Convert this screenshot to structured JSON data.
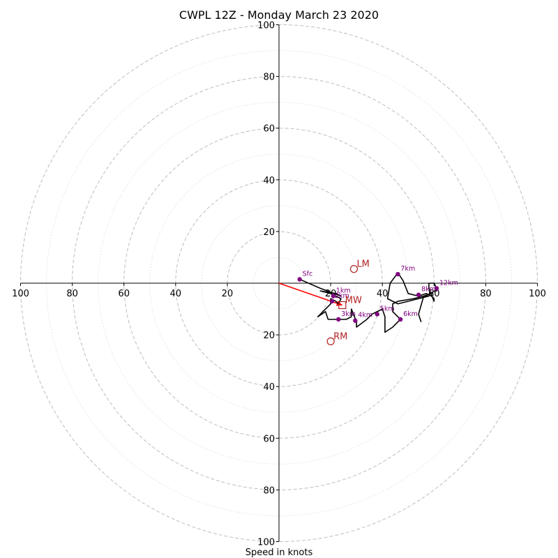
{
  "chart_data": {
    "type": "hodograph",
    "title": "CWPL 12Z - Monday March 23 2020",
    "xlabel": "Speed in knots",
    "ylabel": "",
    "xlim": [
      -100,
      100
    ],
    "ylim": [
      -100,
      100
    ],
    "rings": [
      20,
      40,
      60,
      80,
      100
    ],
    "minor_rings": [
      10,
      30,
      50,
      70,
      90
    ],
    "tick_labels": {
      "x_left": [
        "100",
        "80",
        "60",
        "40",
        "20"
      ],
      "x_right": [
        "20",
        "40",
        "60",
        "80",
        "100"
      ],
      "y_up": [
        "20",
        "40",
        "60",
        "80",
        "100"
      ],
      "y_down": [
        "20",
        "40",
        "60",
        "80",
        "100"
      ]
    },
    "hodograph_line": [
      [
        8,
        1.5
      ],
      [
        16,
        -2
      ],
      [
        24,
        -5
      ],
      [
        22,
        -4
      ],
      [
        16,
        -3
      ],
      [
        20,
        -4
      ],
      [
        24,
        -6
      ],
      [
        23,
        -8
      ],
      [
        22,
        -7
      ],
      [
        20,
        -6
      ],
      [
        20,
        -8
      ],
      [
        18,
        -10
      ],
      [
        15,
        -13
      ],
      [
        18,
        -11
      ],
      [
        19,
        -14
      ],
      [
        23,
        -14
      ],
      [
        26,
        -14
      ],
      [
        28,
        -13
      ],
      [
        28,
        -10
      ],
      [
        30,
        -15
      ],
      [
        30,
        -17
      ],
      [
        34,
        -14
      ],
      [
        36,
        -12
      ],
      [
        38,
        -11
      ],
      [
        40,
        -10
      ],
      [
        41,
        -13
      ],
      [
        41,
        -19
      ],
      [
        44,
        -17
      ],
      [
        47,
        -14
      ],
      [
        44,
        -11
      ],
      [
        44,
        -8
      ],
      [
        46,
        -7
      ],
      [
        52,
        -6
      ],
      [
        56,
        -5
      ],
      [
        58,
        -5
      ],
      [
        46,
        -8
      ],
      [
        42,
        -6
      ],
      [
        43,
        0
      ],
      [
        46,
        4
      ],
      [
        48,
        1
      ],
      [
        50,
        -4
      ],
      [
        54,
        -5
      ],
      [
        57,
        -4
      ],
      [
        59,
        -5
      ],
      [
        60,
        -6
      ],
      [
        60,
        -7
      ],
      [
        58,
        -2
      ],
      [
        58,
        0
      ],
      [
        60,
        0
      ],
      [
        61,
        -2
      ],
      [
        61,
        -3
      ],
      [
        60,
        -3
      ],
      [
        59,
        -4
      ],
      [
        56,
        -5
      ],
      [
        54,
        -12
      ],
      [
        55,
        -15
      ]
    ],
    "height_markers": [
      {
        "label": "Sfc",
        "u": 8,
        "v": 1.5
      },
      {
        "label": "1km",
        "u": 21,
        "v": -5
      },
      {
        "label": "2km",
        "u": 20.5,
        "v": -7
      },
      {
        "label": "3km",
        "u": 23,
        "v": -14
      },
      {
        "label": "4km",
        "u": 29.5,
        "v": -14.5
      },
      {
        "label": "5km",
        "u": 38,
        "v": -12
      },
      {
        "label": "6km",
        "u": 47,
        "v": -14
      },
      {
        "label": "7km",
        "u": 46,
        "v": 3.5
      },
      {
        "label": "8km",
        "u": 54,
        "v": -4.5
      },
      {
        "label": "12km",
        "u": 61,
        "v": -2
      }
    ],
    "storm_motion": [
      {
        "label": "LM",
        "marker": "circle",
        "u": 29,
        "v": 5.5
      },
      {
        "label": "MW",
        "marker": "square",
        "u": 24.5,
        "v": -8.5
      },
      {
        "label": "RM",
        "marker": "circle",
        "u": 20,
        "v": -22.5
      }
    ],
    "bunkers_vector": {
      "from": [
        0,
        0
      ],
      "to": [
        24.5,
        -8.5
      ]
    },
    "colors": {
      "hodograph": "#000000",
      "markers": "#800080",
      "storm_motion": "#b22222",
      "vector": "#ff0000",
      "grid": "#bdbdbd"
    }
  }
}
